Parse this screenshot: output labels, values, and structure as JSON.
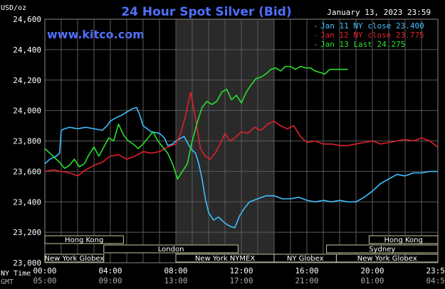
{
  "header": {
    "title": "24 Hour Spot Silver (Bid)",
    "date": "January 13, 2023 23:59",
    "unit": "USD/oz",
    "site": "www.kitco.com"
  },
  "colors": {
    "background": "#000000",
    "grid": "#5a5a5a",
    "title": "#4f6fff",
    "text": "#ffffff",
    "session_bg": "#2a2a2a",
    "session_border": "#c8c8a0",
    "jan11": "#3fbfff",
    "jan12": "#e0202a",
    "jan13": "#29e02c"
  },
  "chart_data": {
    "type": "line",
    "title": "24 Hour Spot Silver (Bid)",
    "xlabel": "",
    "ylabel": "USD/oz",
    "x_unit": "hours (NY time)",
    "xlim": [
      0,
      24
    ],
    "ylim": [
      23.0,
      24.6
    ],
    "grid": true,
    "legend_position": "top-right",
    "y_ticks": [
      "24,600",
      "24,400",
      "24,200",
      "24,000",
      "23,800",
      "23,600",
      "23,400",
      "23,200",
      "23,000"
    ],
    "y_tick_values": [
      24.6,
      24.4,
      24.2,
      24.0,
      23.8,
      23.6,
      23.4,
      23.2,
      23.0
    ],
    "x_ticks_ny": [
      "00:00",
      "04:00",
      "08:00",
      "12:00",
      "16:00",
      "20:00",
      "23:59"
    ],
    "x_ticks_gmt": [
      "05:00",
      "09:00",
      "13:00",
      "17:00",
      "21:00",
      "01:00",
      "04:59"
    ],
    "x_tick_values": [
      0,
      4,
      8,
      12,
      16,
      20,
      24
    ],
    "x_axis_labels": {
      "ny": "NY Time",
      "gmt": "GMT"
    },
    "series": [
      {
        "name": "Jan 11 NY close 23.400",
        "color": "#3fbfff",
        "x": [
          0,
          0.3,
          0.7,
          0.9,
          1.0,
          1.2,
          1.5,
          2.0,
          2.5,
          3.0,
          3.5,
          3.8,
          4.0,
          4.3,
          4.7,
          5.0,
          5.3,
          5.6,
          5.8,
          6.0,
          6.5,
          7.0,
          7.3,
          7.5,
          7.8,
          8.0,
          8.5,
          8.8,
          9.0,
          9.2,
          9.4,
          9.6,
          9.8,
          10.0,
          10.3,
          10.6,
          11.0,
          11.3,
          11.6,
          11.9,
          12.2,
          12.5,
          13.0,
          13.5,
          14.0,
          14.5,
          15.0,
          15.5,
          16.0,
          16.5,
          17.0,
          17.5,
          18.0,
          18.5,
          19.0,
          19.5,
          20.0,
          20.5,
          21.0,
          21.5,
          22.0,
          22.5,
          23.0,
          23.5,
          23.99
        ],
        "y": [
          23.65,
          23.68,
          23.7,
          23.72,
          23.87,
          23.88,
          23.89,
          23.88,
          23.89,
          23.88,
          23.87,
          23.9,
          23.93,
          23.95,
          23.97,
          23.99,
          24.01,
          24.02,
          23.97,
          23.9,
          23.86,
          23.85,
          23.82,
          23.77,
          23.78,
          23.8,
          23.83,
          23.77,
          23.74,
          23.72,
          23.65,
          23.55,
          23.42,
          23.33,
          23.28,
          23.3,
          23.26,
          23.24,
          23.23,
          23.31,
          23.36,
          23.4,
          23.42,
          23.44,
          23.44,
          23.42,
          23.42,
          23.43,
          23.41,
          23.4,
          23.41,
          23.4,
          23.41,
          23.4,
          23.4,
          23.43,
          23.47,
          23.52,
          23.55,
          23.58,
          23.57,
          23.59,
          23.59,
          23.6,
          23.6
        ]
      },
      {
        "name": "Jan 12 NY close 23.775",
        "color": "#e0202a",
        "x": [
          0,
          0.5,
          1.0,
          1.5,
          2.0,
          2.5,
          3.0,
          3.5,
          4.0,
          4.5,
          5.0,
          5.5,
          6.0,
          6.5,
          7.0,
          7.5,
          8.0,
          8.3,
          8.6,
          8.9,
          9.2,
          9.5,
          9.8,
          10.1,
          10.4,
          10.7,
          11.0,
          11.3,
          11.6,
          12.0,
          12.4,
          12.8,
          13.2,
          13.6,
          14.0,
          14.4,
          14.8,
          15.2,
          15.6,
          16.0,
          16.5,
          17.0,
          17.5,
          18.0,
          18.5,
          19.0,
          19.5,
          20.0,
          20.5,
          21.0,
          21.5,
          22.0,
          22.5,
          23.0,
          23.5,
          23.99
        ],
        "y": [
          23.6,
          23.61,
          23.6,
          23.59,
          23.57,
          23.61,
          23.64,
          23.66,
          23.7,
          23.71,
          23.68,
          23.7,
          23.73,
          23.72,
          23.73,
          23.76,
          23.78,
          23.85,
          23.97,
          24.12,
          23.95,
          23.75,
          23.7,
          23.68,
          23.72,
          23.78,
          23.85,
          23.8,
          23.82,
          23.86,
          23.85,
          23.89,
          23.87,
          23.91,
          23.93,
          23.9,
          23.88,
          23.9,
          23.83,
          23.79,
          23.8,
          23.78,
          23.78,
          23.77,
          23.77,
          23.78,
          23.79,
          23.8,
          23.78,
          23.79,
          23.8,
          23.81,
          23.8,
          23.82,
          23.8,
          23.76
        ]
      },
      {
        "name": "Jan 13 Last 24.275",
        "color": "#29e02c",
        "x": [
          0,
          0.3,
          0.6,
          0.9,
          1.2,
          1.5,
          1.8,
          2.1,
          2.4,
          2.7,
          3.0,
          3.3,
          3.6,
          3.9,
          4.2,
          4.5,
          4.8,
          5.1,
          5.4,
          5.7,
          6.0,
          6.3,
          6.6,
          6.9,
          7.2,
          7.5,
          7.8,
          8.1,
          8.4,
          8.7,
          9.0,
          9.3,
          9.6,
          9.9,
          10.2,
          10.5,
          10.8,
          11.1,
          11.4,
          11.7,
          12.0,
          12.3,
          12.6,
          12.9,
          13.2,
          13.5,
          13.8,
          14.1,
          14.4,
          14.7,
          15.0,
          15.3,
          15.6,
          15.9,
          16.2,
          16.5,
          16.8,
          17.1,
          17.4,
          17.7,
          18.0,
          18.3,
          18.5
        ],
        "y": [
          23.75,
          23.72,
          23.69,
          23.66,
          23.62,
          23.64,
          23.68,
          23.63,
          23.65,
          23.71,
          23.76,
          23.7,
          23.76,
          23.82,
          23.8,
          23.91,
          23.84,
          23.8,
          23.78,
          23.75,
          23.78,
          23.82,
          23.86,
          23.8,
          23.76,
          23.72,
          23.65,
          23.55,
          23.6,
          23.65,
          23.8,
          23.92,
          24.02,
          24.06,
          24.04,
          24.06,
          24.12,
          24.14,
          24.07,
          24.1,
          24.05,
          24.12,
          24.17,
          24.21,
          24.22,
          24.24,
          24.27,
          24.28,
          24.26,
          24.29,
          24.29,
          24.27,
          24.29,
          24.28,
          24.28,
          24.26,
          24.25,
          24.24,
          24.27,
          24.27,
          24.27,
          24.27,
          24.27
        ]
      }
    ]
  },
  "sessions": {
    "highlight_range": [
      8,
      14
    ],
    "rows": [
      [
        {
          "label": "Hong Kong",
          "start": 0,
          "end": 4.8
        },
        {
          "label": "Hong Kong",
          "start": 19.8,
          "end": 24
        }
      ],
      [
        {
          "label": "London",
          "start": 3.6,
          "end": 11.8
        },
        {
          "label": "Sydney",
          "start": 17.2,
          "end": 24
        }
      ],
      [
        {
          "label": "New York Globex",
          "start": 0,
          "end": 3.6
        },
        {
          "label": "New York Globex",
          "start": 17.8,
          "end": 24
        }
      ],
      [
        {
          "label": "New York NYMEX",
          "start": 8.0,
          "end": 14.0
        },
        {
          "label": "NY Globex",
          "start": 14.0,
          "end": 17.8
        }
      ]
    ]
  }
}
